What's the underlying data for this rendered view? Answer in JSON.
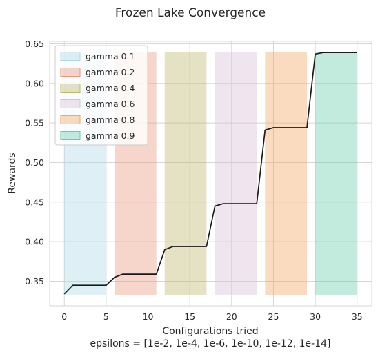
{
  "chart_data": {
    "type": "line",
    "title": "Frozen Lake Convergence",
    "xlabel": "Configurations tried",
    "xlabel_sub": "epsilons = [1e-2, 1e-4, 1e-6, 1e-10, 1e-12, 1e-14]",
    "ylabel": "Rewards",
    "xlim": [
      -1.75,
      36.75
    ],
    "ylim": [
      0.319,
      0.653
    ],
    "xticks": [
      0,
      5,
      10,
      15,
      20,
      25,
      30,
      35
    ],
    "yticks": [
      0.35,
      0.4,
      0.45,
      0.5,
      0.55,
      0.6,
      0.65
    ],
    "ytick_labels": [
      "0.35",
      "0.40",
      "0.45",
      "0.50",
      "0.55",
      "0.60",
      "0.65"
    ],
    "grid": true,
    "legend_position": "top-left",
    "line_color": "#1a1a1a",
    "series": [
      {
        "x": [
          0,
          1,
          2,
          3,
          4,
          5,
          6,
          7,
          8,
          9,
          10,
          11,
          12,
          13,
          14,
          15,
          16,
          17,
          18,
          19,
          20,
          21,
          22,
          23,
          24,
          25,
          26,
          27,
          28,
          29,
          30,
          31,
          32,
          33,
          34,
          35
        ],
        "values": [
          0.334,
          0.345,
          0.345,
          0.345,
          0.345,
          0.345,
          0.355,
          0.359,
          0.359,
          0.359,
          0.359,
          0.359,
          0.39,
          0.394,
          0.394,
          0.394,
          0.394,
          0.394,
          0.445,
          0.448,
          0.448,
          0.448,
          0.448,
          0.448,
          0.541,
          0.544,
          0.544,
          0.544,
          0.544,
          0.544,
          0.637,
          0.639,
          0.639,
          0.639,
          0.639,
          0.639
        ]
      }
    ],
    "bands": [
      {
        "name": "gamma 0.1",
        "x_start": 0,
        "x_end": 5,
        "y_bottom": 0.333,
        "y_top": 0.639,
        "color": "#add8e6"
      },
      {
        "name": "gamma 0.2",
        "x_start": 6,
        "x_end": 11,
        "y_bottom": 0.333,
        "y_top": 0.639,
        "color": "#e9967a"
      },
      {
        "name": "gamma 0.4",
        "x_start": 12,
        "x_end": 17,
        "y_bottom": 0.333,
        "y_top": 0.639,
        "color": "#bdb76b"
      },
      {
        "name": "gamma 0.6",
        "x_start": 18,
        "x_end": 23,
        "y_bottom": 0.333,
        "y_top": 0.639,
        "color": "#d8bfd8"
      },
      {
        "name": "gamma 0.8",
        "x_start": 24,
        "x_end": 29,
        "y_bottom": 0.333,
        "y_top": 0.639,
        "color": "#f4a460"
      },
      {
        "name": "gamma 0.9",
        "x_start": 30,
        "x_end": 35,
        "y_bottom": 0.333,
        "y_top": 0.639,
        "color": "#66cdaa"
      }
    ]
  }
}
